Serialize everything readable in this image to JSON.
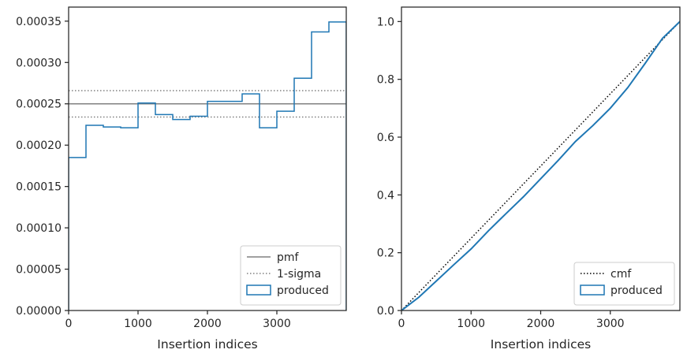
{
  "chart_data": [
    {
      "type": "step",
      "title": "",
      "xlabel": "Insertion indices",
      "ylabel": "",
      "xlim": [
        0,
        4000
      ],
      "ylim": [
        0,
        0.000367
      ],
      "xticks": [
        0,
        1000,
        2000,
        3000
      ],
      "xtick_labels": [
        "0",
        "1000",
        "2000",
        "3000"
      ],
      "yticks": [
        0,
        5e-05,
        0.0001,
        0.00015,
        0.0002,
        0.00025,
        0.0003,
        0.00035
      ],
      "ytick_labels": [
        "0.00000",
        "0.00005",
        "0.00010",
        "0.00015",
        "0.00020",
        "0.00025",
        "0.00030",
        "0.00035"
      ],
      "legend_position": "bottom-right",
      "reference_lines": [
        {
          "name": "pmf",
          "style": "solid",
          "color": "#808080",
          "y": 0.00025
        },
        {
          "name": "1-sigma",
          "style": "dotted",
          "color": "#808080",
          "y": 0.000266
        },
        {
          "name": "1-sigma",
          "style": "dotted",
          "color": "#808080",
          "y": 0.000234
        }
      ],
      "series": [
        {
          "name": "produced",
          "color": "#1f77b4",
          "bin_edges": [
            0,
            250,
            500,
            750,
            1000,
            1250,
            1500,
            1750,
            2000,
            2250,
            2500,
            2750,
            3000,
            3250,
            3500,
            3750,
            4000
          ],
          "values": [
            0.000185,
            0.000224,
            0.000222,
            0.000221,
            0.000251,
            0.000237,
            0.000231,
            0.000235,
            0.000253,
            0.000253,
            0.000262,
            0.000221,
            0.000241,
            0.000281,
            0.000337,
            0.000349
          ]
        }
      ],
      "legend": [
        {
          "label": "pmf",
          "style": "solid"
        },
        {
          "label": "1-sigma",
          "style": "dotted"
        },
        {
          "label": "produced",
          "style": "patch"
        }
      ]
    },
    {
      "type": "line",
      "title": "",
      "xlabel": "Insertion indices",
      "ylabel": "",
      "xlim": [
        0,
        4000
      ],
      "ylim": [
        0,
        1.05
      ],
      "xticks": [
        0,
        1000,
        2000,
        3000
      ],
      "xtick_labels": [
        "0",
        "1000",
        "2000",
        "3000"
      ],
      "yticks": [
        0,
        0.2,
        0.4,
        0.6,
        0.8,
        1.0
      ],
      "ytick_labels": [
        "0.0",
        "0.2",
        "0.4",
        "0.6",
        "0.8",
        "1.0"
      ],
      "legend_position": "bottom-right",
      "series": [
        {
          "name": "cmf",
          "style": "dotted",
          "color": "#000000",
          "x": [
            0,
            4000
          ],
          "y": [
            0,
            1.0
          ]
        },
        {
          "name": "produced",
          "style": "solid",
          "color": "#1f77b4",
          "x": [
            0,
            250,
            500,
            750,
            1000,
            1250,
            1500,
            1750,
            2000,
            2250,
            2500,
            2750,
            3000,
            3250,
            3500,
            3750,
            4000
          ],
          "y": [
            0,
            0.046,
            0.102,
            0.158,
            0.213,
            0.276,
            0.335,
            0.393,
            0.456,
            0.519,
            0.585,
            0.64,
            0.7,
            0.771,
            0.855,
            0.942,
            1.0
          ]
        }
      ],
      "legend": [
        {
          "label": "cmf",
          "style": "dotted"
        },
        {
          "label": "produced",
          "style": "patch"
        }
      ]
    }
  ]
}
